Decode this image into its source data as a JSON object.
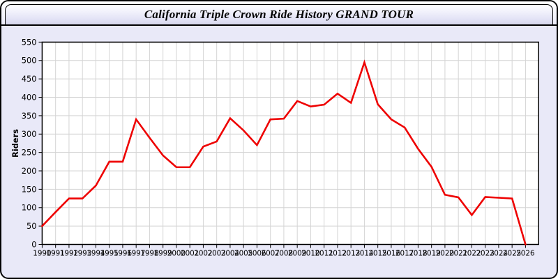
{
  "window": {
    "title": "California Triple Crown Ride History GRAND TOUR"
  },
  "chart_data": {
    "type": "line",
    "title": "California Triple Crown Ride History GRAND TOUR",
    "xlabel": "",
    "ylabel": "Riders",
    "x": [
      1990,
      1991,
      1992,
      1993,
      1994,
      1995,
      1996,
      1997,
      1998,
      1999,
      2000,
      2001,
      2002,
      2003,
      2004,
      2005,
      2006,
      2007,
      2008,
      2009,
      2010,
      2011,
      2012,
      2013,
      2014,
      2015,
      2016,
      2017,
      2018,
      2019,
      2020,
      2021,
      2022,
      2023,
      2024,
      2025,
      2026
    ],
    "series": [
      {
        "name": "Riders",
        "color": "#ee0000",
        "values": [
          50,
          88,
          125,
          125,
          160,
          225,
          225,
          340,
          290,
          242,
          210,
          210,
          266,
          280,
          343,
          310,
          270,
          340,
          342,
          390,
          375,
          380,
          410,
          385,
          495,
          381,
          340,
          318,
          260,
          211,
          135,
          128,
          80,
          129,
          127,
          125,
          0
        ]
      }
    ],
    "ylim": [
      0,
      550
    ],
    "yticks": [
      0,
      50,
      100,
      150,
      200,
      250,
      300,
      350,
      400,
      450,
      500,
      550
    ],
    "grid": true,
    "legend_position": "none",
    "layout": {
      "plot_background": "#ffffff",
      "page_background": "#e9e9f8",
      "grid_color": "#d4d4d4",
      "axis_color": "#000000",
      "tick_label_color": "#000000"
    }
  }
}
